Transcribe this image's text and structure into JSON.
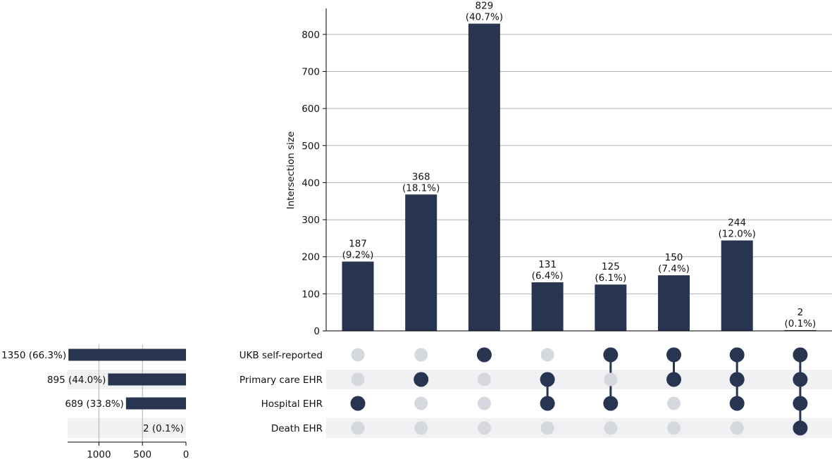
{
  "chart_data": {
    "type": "bar",
    "subtype": "upset",
    "ylabel": "Intersection size",
    "ylim": [
      0,
      870
    ],
    "yticks": [
      0,
      100,
      200,
      300,
      400,
      500,
      600,
      700,
      800
    ],
    "grid": true,
    "sets": [
      "UKB self-reported",
      "Primary care EHR",
      "Hospital EHR",
      "Death EHR"
    ],
    "set_sizes": [
      {
        "name": "UKB self-reported",
        "value": 1350,
        "label": "1350 (66.3%)"
      },
      {
        "name": "Primary care EHR",
        "value": 895,
        "label": "895 (44.0%)"
      },
      {
        "name": "Hospital EHR",
        "value": 689,
        "label": "689 (33.8%)"
      },
      {
        "name": "Death EHR",
        "value": 2,
        "label": "2 (0.1%)"
      }
    ],
    "set_size_xticks": [
      1000,
      500,
      0
    ],
    "set_size_xlim": [
      1380,
      0
    ],
    "intersections": [
      {
        "value": 187,
        "count_label": "187",
        "pct_label": "(9.2%)",
        "members": [
          0,
          0,
          1,
          0
        ]
      },
      {
        "value": 368,
        "count_label": "368",
        "pct_label": "(18.1%)",
        "members": [
          0,
          1,
          0,
          0
        ]
      },
      {
        "value": 829,
        "count_label": "829",
        "pct_label": "(40.7%)",
        "members": [
          1,
          0,
          0,
          0
        ]
      },
      {
        "value": 131,
        "count_label": "131",
        "pct_label": "(6.4%)",
        "members": [
          0,
          1,
          1,
          0
        ]
      },
      {
        "value": 125,
        "count_label": "125",
        "pct_label": "(6.1%)",
        "members": [
          1,
          0,
          1,
          0
        ]
      },
      {
        "value": 150,
        "count_label": "150",
        "pct_label": "(7.4%)",
        "members": [
          1,
          1,
          0,
          0
        ]
      },
      {
        "value": 244,
        "count_label": "244",
        "pct_label": "(12.0%)",
        "members": [
          1,
          1,
          1,
          0
        ]
      },
      {
        "value": 2,
        "count_label": "2",
        "pct_label": "(0.1%)",
        "members": [
          1,
          1,
          1,
          1
        ]
      }
    ],
    "colors": {
      "bar": "#273550",
      "dot_active": "#273550",
      "dot_inactive": "#d5d8de",
      "stripe": "#f1f1f4",
      "grid": "#b0b0b0",
      "axis": "#000000"
    }
  }
}
